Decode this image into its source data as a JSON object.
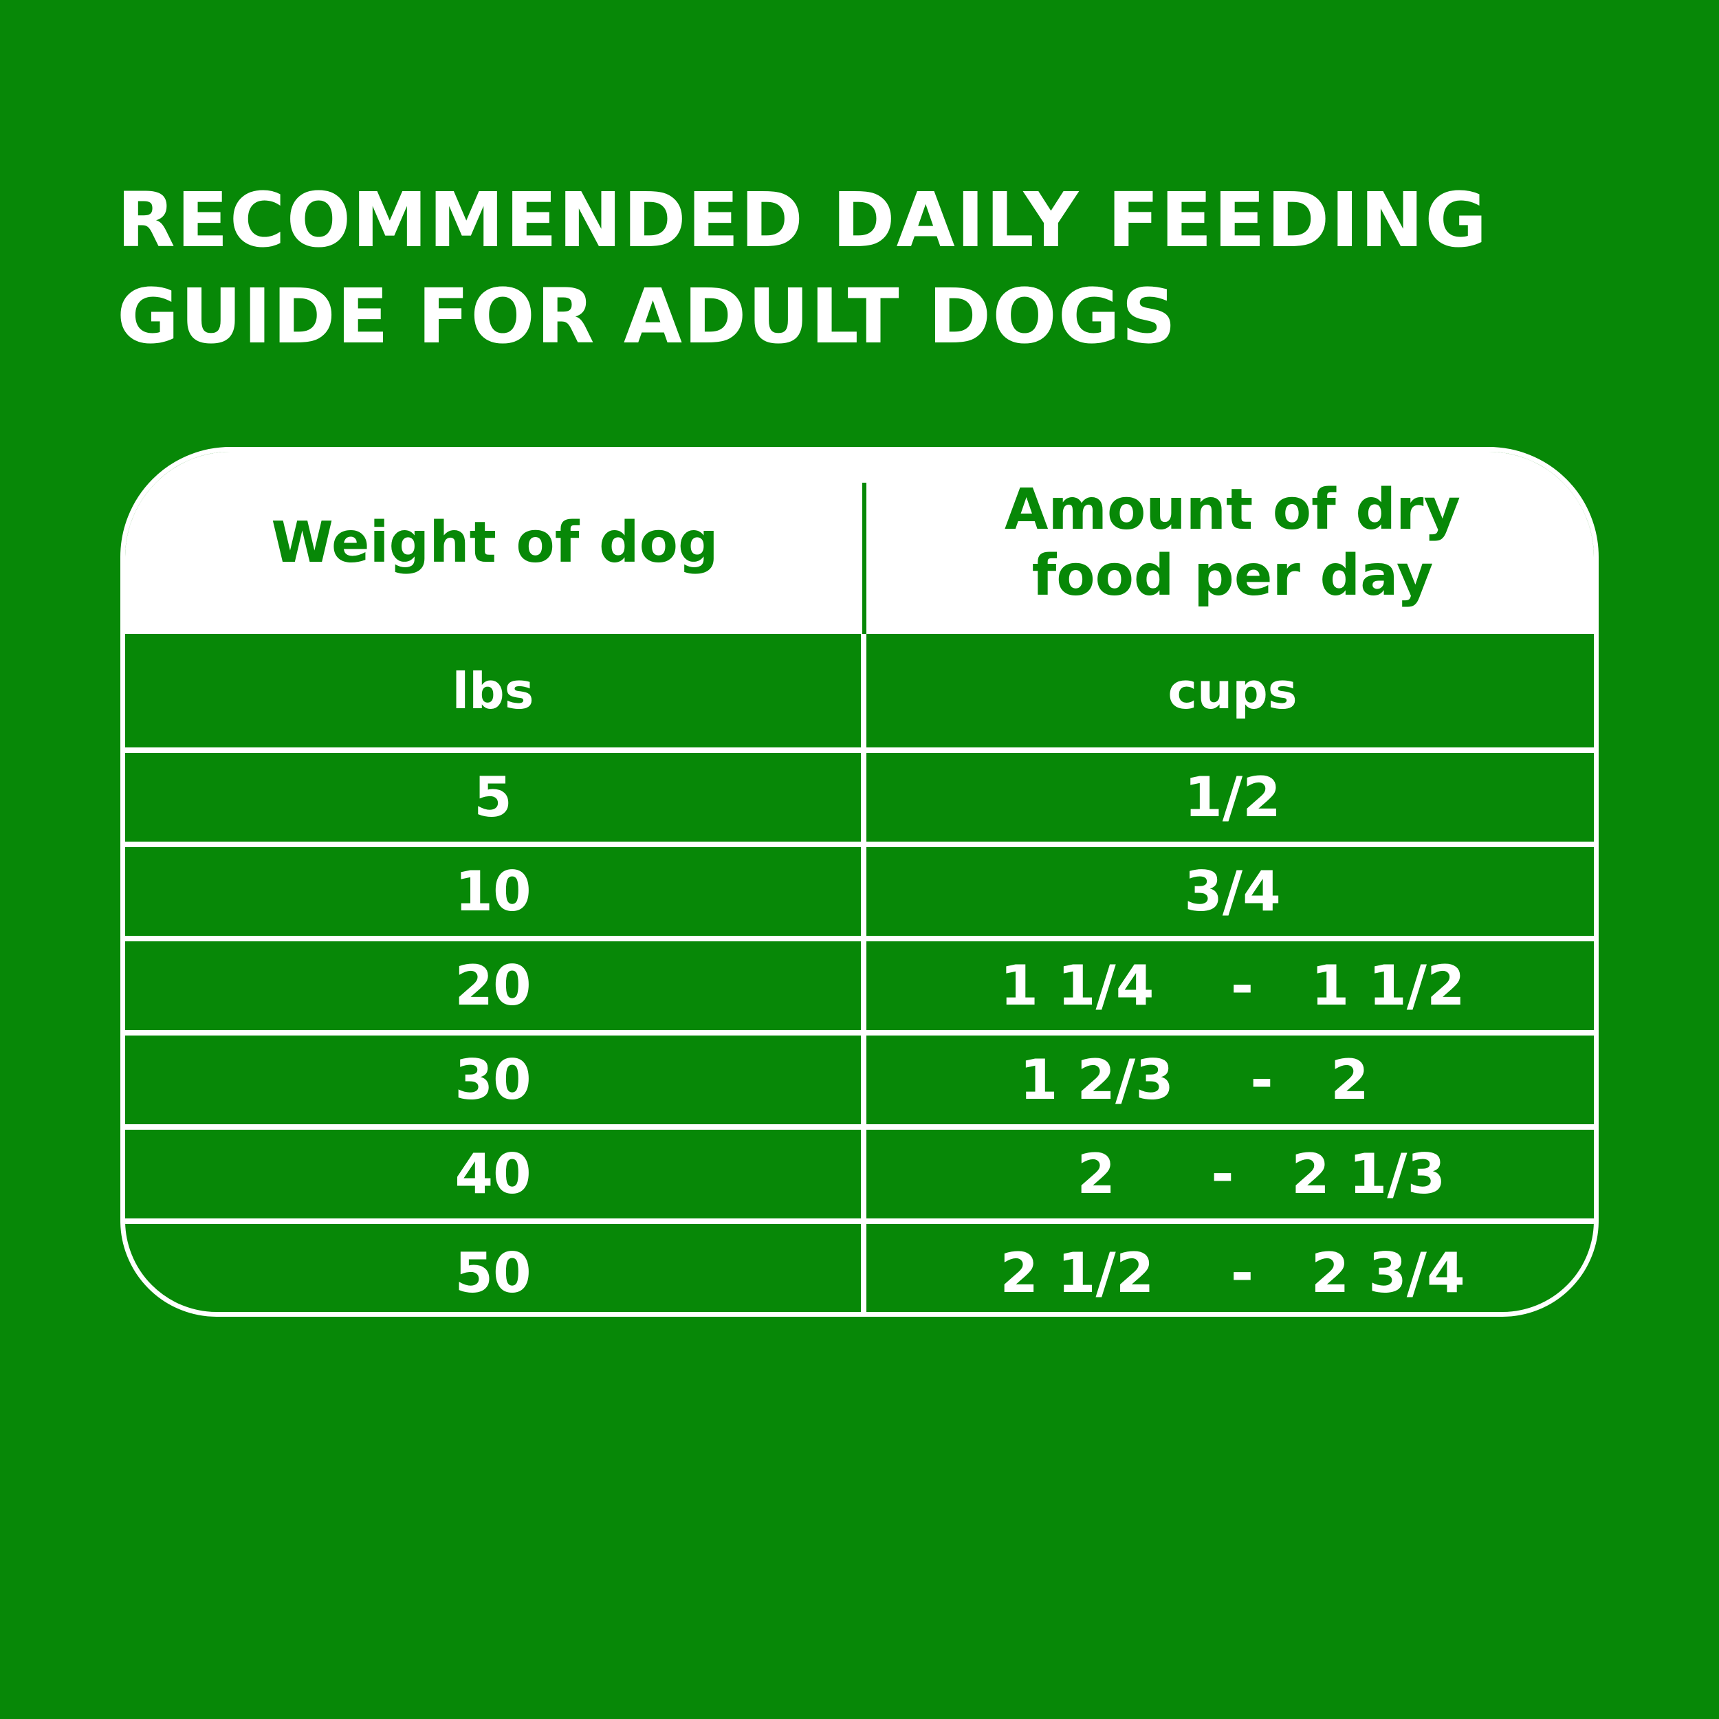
{
  "title": {
    "line1": "RECOMMENDED DAILY FEEDING",
    "line2": "GUIDE FOR ADULT DOGS"
  },
  "table": {
    "header": {
      "col1": "Weight of dog",
      "col2_line1": "Amount of dry",
      "col2_line2": "food per day"
    },
    "units": {
      "col1": "lbs",
      "col2": "cups"
    },
    "rows": [
      {
        "weight": "5",
        "amount": "1/2"
      },
      {
        "weight": "10",
        "amount": "3/4"
      },
      {
        "weight": "20",
        "amount": "1 1/4    -   1 1/2"
      },
      {
        "weight": "30",
        "amount": "1 2/3    -   2    "
      },
      {
        "weight": "40",
        "amount": "   2     -   2 1/3"
      },
      {
        "weight": "50",
        "amount": "2 1/2    -   2 3/4"
      }
    ]
  },
  "colors": {
    "background": "#078807",
    "text": "#ffffff"
  }
}
